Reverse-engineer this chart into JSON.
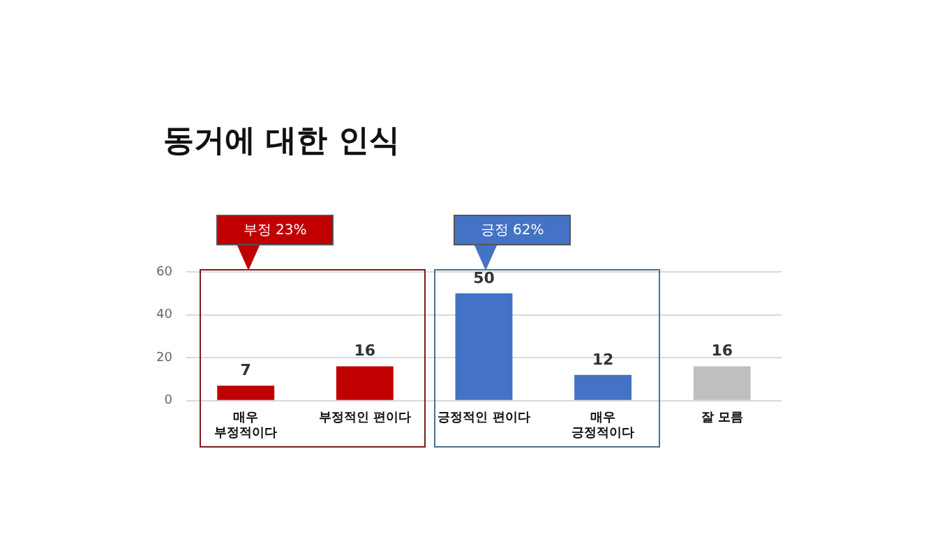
{
  "chart_data": {
    "type": "bar",
    "title": "동거에 대한 인식",
    "categories": [
      "매우\n부정적이다",
      "부정적인 편이다",
      "긍정적인 편이다",
      "매우\n긍정적이다",
      "잘 모름"
    ],
    "values": [
      7,
      16,
      50,
      12,
      16
    ],
    "colors": [
      "#c00000",
      "#c00000",
      "#4472c4",
      "#4472c4",
      "#bfbfbf"
    ],
    "ylim": [
      0,
      60
    ],
    "yticks": [
      0,
      20,
      40,
      60
    ],
    "grid": "y",
    "data_labels": true,
    "legend": false,
    "annotations": [
      "부정 23%",
      "긍정 62%"
    ]
  }
}
